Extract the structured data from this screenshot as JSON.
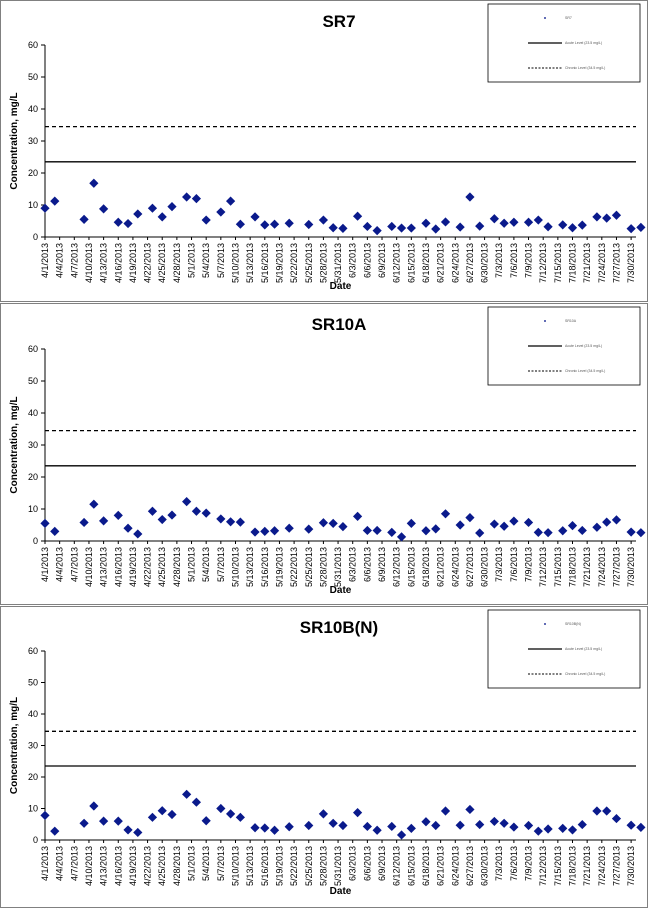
{
  "chart_data": [
    {
      "type": "scatter",
      "title": "SR7",
      "xlabel": "Date",
      "ylabel": "Concentration, mg/L",
      "ylim": [
        0,
        60
      ],
      "yticks": [
        0,
        10,
        20,
        30,
        40,
        50,
        60
      ],
      "grid": false,
      "legend_placement": "top-right",
      "x_tick_labels": [
        "4/1/2013",
        "4/4/2013",
        "4/7/2013",
        "4/10/2013",
        "4/13/2013",
        "4/16/2013",
        "4/19/2013",
        "4/22/2013",
        "4/25/2013",
        "4/28/2013",
        "5/1/2013",
        "5/4/2013",
        "5/7/2013",
        "5/10/2013",
        "5/13/2013",
        "5/16/2013",
        "5/19/2013",
        "5/22/2013",
        "5/25/2013",
        "5/28/2013",
        "5/31/2013",
        "6/3/2013",
        "6/6/2013",
        "6/9/2013",
        "6/12/2013",
        "6/15/2013",
        "6/18/2013",
        "6/21/2013",
        "6/24/2013",
        "6/27/2013",
        "6/30/2013",
        "7/3/2013",
        "7/6/2013",
        "7/9/2013",
        "7/12/2013",
        "7/15/2013",
        "7/18/2013",
        "7/21/2013",
        "7/24/2013",
        "7/27/2013",
        "7/30/2013"
      ],
      "x_start": "2013-04-01",
      "x_end": "2013-07-31",
      "series": [
        {
          "name": "SR7",
          "marker_color": "#0a1a8c",
          "points": [
            [
              "2013-04-01",
              9.0
            ],
            [
              "2013-04-03",
              11.2
            ],
            [
              "2013-04-09",
              5.5
            ],
            [
              "2013-04-11",
              16.8
            ],
            [
              "2013-04-13",
              8.8
            ],
            [
              "2013-04-16",
              4.6
            ],
            [
              "2013-04-18",
              4.2
            ],
            [
              "2013-04-20",
              7.2
            ],
            [
              "2013-04-23",
              9.0
            ],
            [
              "2013-04-25",
              6.3
            ],
            [
              "2013-04-27",
              9.5
            ],
            [
              "2013-04-30",
              12.5
            ],
            [
              "2013-05-02",
              12.0
            ],
            [
              "2013-05-04",
              5.3
            ],
            [
              "2013-05-07",
              7.8
            ],
            [
              "2013-05-09",
              11.2
            ],
            [
              "2013-05-11",
              4.0
            ],
            [
              "2013-05-14",
              6.3
            ],
            [
              "2013-05-16",
              3.8
            ],
            [
              "2013-05-18",
              4.0
            ],
            [
              "2013-05-21",
              4.3
            ],
            [
              "2013-05-25",
              3.9
            ],
            [
              "2013-05-28",
              5.3
            ],
            [
              "2013-05-30",
              2.9
            ],
            [
              "2013-06-01",
              2.7
            ],
            [
              "2013-06-04",
              6.5
            ],
            [
              "2013-06-06",
              3.3
            ],
            [
              "2013-06-08",
              2.0
            ],
            [
              "2013-06-11",
              3.3
            ],
            [
              "2013-06-13",
              2.8
            ],
            [
              "2013-06-15",
              2.8
            ],
            [
              "2013-06-18",
              4.3
            ],
            [
              "2013-06-20",
              2.5
            ],
            [
              "2013-06-22",
              4.7
            ],
            [
              "2013-06-25",
              3.1
            ],
            [
              "2013-06-27",
              12.5
            ],
            [
              "2013-06-29",
              3.4
            ],
            [
              "2013-07-02",
              5.7
            ],
            [
              "2013-07-04",
              4.3
            ],
            [
              "2013-07-06",
              4.6
            ],
            [
              "2013-07-09",
              4.6
            ],
            [
              "2013-07-11",
              5.3
            ],
            [
              "2013-07-13",
              3.2
            ],
            [
              "2013-07-16",
              3.8
            ],
            [
              "2013-07-18",
              2.9
            ],
            [
              "2013-07-20",
              3.7
            ],
            [
              "2013-07-23",
              6.3
            ],
            [
              "2013-07-25",
              5.9
            ],
            [
              "2013-07-27",
              6.8
            ],
            [
              "2013-07-30",
              2.6
            ],
            [
              "2013-08-01",
              3.0
            ]
          ]
        }
      ],
      "reference_lines": [
        {
          "style": "solid",
          "value": 23.5,
          "color": "#000000"
        },
        {
          "style": "dashed",
          "value": 34.5,
          "color": "#000000"
        }
      ],
      "legend": [
        "SR7",
        "Acute Level (23.5 mg/L)",
        "Chronic Level (34.5 mg/L)"
      ]
    },
    {
      "type": "scatter",
      "title": "SR10A",
      "xlabel": "Date",
      "ylabel": "Concentration, mg/L",
      "ylim": [
        0,
        60
      ],
      "yticks": [
        0,
        10,
        20,
        30,
        40,
        50,
        60
      ],
      "grid": false,
      "legend_placement": "top-right",
      "x_tick_labels": [
        "4/1/2013",
        "4/4/2013",
        "4/7/2013",
        "4/10/2013",
        "4/13/2013",
        "4/16/2013",
        "4/19/2013",
        "4/22/2013",
        "4/25/2013",
        "4/28/2013",
        "5/1/2013",
        "5/4/2013",
        "5/7/2013",
        "5/10/2013",
        "5/13/2013",
        "5/16/2013",
        "5/19/2013",
        "5/22/2013",
        "5/25/2013",
        "5/28/2013",
        "5/31/2013",
        "6/3/2013",
        "6/6/2013",
        "6/9/2013",
        "6/12/2013",
        "6/15/2013",
        "6/18/2013",
        "6/21/2013",
        "6/24/2013",
        "6/27/2013",
        "6/30/2013",
        "7/3/2013",
        "7/6/2013",
        "7/9/2013",
        "7/12/2013",
        "7/15/2013",
        "7/18/2013",
        "7/21/2013",
        "7/24/2013",
        "7/27/2013",
        "7/30/2013"
      ],
      "x_start": "2013-04-01",
      "x_end": "2013-07-31",
      "series": [
        {
          "name": "SR10A",
          "marker_color": "#0a1a8c",
          "points": [
            [
              "2013-04-01",
              5.5
            ],
            [
              "2013-04-03",
              3.0
            ],
            [
              "2013-04-09",
              5.8
            ],
            [
              "2013-04-11",
              11.5
            ],
            [
              "2013-04-13",
              6.3
            ],
            [
              "2013-04-16",
              8.0
            ],
            [
              "2013-04-18",
              4.0
            ],
            [
              "2013-04-20",
              2.2
            ],
            [
              "2013-04-23",
              9.3
            ],
            [
              "2013-04-25",
              6.7
            ],
            [
              "2013-04-27",
              8.1
            ],
            [
              "2013-04-30",
              12.3
            ],
            [
              "2013-05-02",
              9.3
            ],
            [
              "2013-05-04",
              8.7
            ],
            [
              "2013-05-07",
              6.9
            ],
            [
              "2013-05-09",
              6.0
            ],
            [
              "2013-05-11",
              5.9
            ],
            [
              "2013-05-14",
              2.8
            ],
            [
              "2013-05-16",
              3.0
            ],
            [
              "2013-05-18",
              3.2
            ],
            [
              "2013-05-21",
              4.0
            ],
            [
              "2013-05-25",
              3.7
            ],
            [
              "2013-05-28",
              5.7
            ],
            [
              "2013-05-30",
              5.5
            ],
            [
              "2013-06-01",
              4.5
            ],
            [
              "2013-06-04",
              7.7
            ],
            [
              "2013-06-06",
              3.3
            ],
            [
              "2013-06-08",
              3.3
            ],
            [
              "2013-06-11",
              2.7
            ],
            [
              "2013-06-13",
              1.3
            ],
            [
              "2013-06-15",
              5.5
            ],
            [
              "2013-06-18",
              3.2
            ],
            [
              "2013-06-20",
              3.8
            ],
            [
              "2013-06-22",
              8.5
            ],
            [
              "2013-06-25",
              5.0
            ],
            [
              "2013-06-27",
              7.3
            ],
            [
              "2013-06-29",
              2.5
            ],
            [
              "2013-07-02",
              5.3
            ],
            [
              "2013-07-04",
              4.6
            ],
            [
              "2013-07-06",
              6.2
            ],
            [
              "2013-07-09",
              5.8
            ],
            [
              "2013-07-11",
              2.7
            ],
            [
              "2013-07-13",
              2.6
            ],
            [
              "2013-07-16",
              3.2
            ],
            [
              "2013-07-18",
              4.8
            ],
            [
              "2013-07-20",
              3.3
            ],
            [
              "2013-07-23",
              4.3
            ],
            [
              "2013-07-25",
              5.9
            ],
            [
              "2013-07-27",
              6.6
            ],
            [
              "2013-07-30",
              2.8
            ],
            [
              "2013-08-01",
              2.6
            ]
          ]
        }
      ],
      "reference_lines": [
        {
          "style": "solid",
          "value": 23.5,
          "color": "#000000"
        },
        {
          "style": "dashed",
          "value": 34.5,
          "color": "#000000"
        }
      ],
      "legend": [
        "SR10A",
        "Acute Level (23.5 mg/L)",
        "Chronic Level (34.5 mg/L)"
      ]
    },
    {
      "type": "scatter",
      "title": "SR10B(N)",
      "xlabel": "Date",
      "ylabel": "Concentration, mg/L",
      "ylim": [
        0,
        60
      ],
      "yticks": [
        0,
        10,
        20,
        30,
        40,
        50,
        60
      ],
      "grid": false,
      "legend_placement": "top-right",
      "x_tick_labels": [
        "4/1/2013",
        "4/4/2013",
        "4/7/2013",
        "4/10/2013",
        "4/13/2013",
        "4/16/2013",
        "4/19/2013",
        "4/22/2013",
        "4/25/2013",
        "4/28/2013",
        "5/1/2013",
        "5/4/2013",
        "5/7/2013",
        "5/10/2013",
        "5/13/2013",
        "5/16/2013",
        "5/19/2013",
        "5/22/2013",
        "5/25/2013",
        "5/28/2013",
        "5/31/2013",
        "6/3/2013",
        "6/6/2013",
        "6/9/2013",
        "6/12/2013",
        "6/15/2013",
        "6/18/2013",
        "6/21/2013",
        "6/24/2013",
        "6/27/2013",
        "6/30/2013",
        "7/3/2013",
        "7/6/2013",
        "7/9/2013",
        "7/12/2013",
        "7/15/2013",
        "7/18/2013",
        "7/21/2013",
        "7/24/2013",
        "7/27/2013",
        "7/30/2013"
      ],
      "x_start": "2013-04-01",
      "x_end": "2013-07-31",
      "series": [
        {
          "name": "SR10B(N)",
          "marker_color": "#0a1a8c",
          "points": [
            [
              "2013-04-01",
              7.8
            ],
            [
              "2013-04-03",
              2.8
            ],
            [
              "2013-04-09",
              5.3
            ],
            [
              "2013-04-11",
              10.8
            ],
            [
              "2013-04-13",
              6.0
            ],
            [
              "2013-04-16",
              6.0
            ],
            [
              "2013-04-18",
              3.2
            ],
            [
              "2013-04-20",
              2.4
            ],
            [
              "2013-04-23",
              7.2
            ],
            [
              "2013-04-25",
              9.3
            ],
            [
              "2013-04-27",
              8.1
            ],
            [
              "2013-04-30",
              14.5
            ],
            [
              "2013-05-02",
              12.0
            ],
            [
              "2013-05-04",
              6.1
            ],
            [
              "2013-05-07",
              10.0
            ],
            [
              "2013-05-09",
              8.3
            ],
            [
              "2013-05-11",
              7.2
            ],
            [
              "2013-05-14",
              3.9
            ],
            [
              "2013-05-16",
              3.8
            ],
            [
              "2013-05-18",
              3.1
            ],
            [
              "2013-05-21",
              4.2
            ],
            [
              "2013-05-25",
              4.6
            ],
            [
              "2013-05-28",
              8.3
            ],
            [
              "2013-05-30",
              5.3
            ],
            [
              "2013-06-01",
              4.6
            ],
            [
              "2013-06-04",
              8.7
            ],
            [
              "2013-06-06",
              4.3
            ],
            [
              "2013-06-08",
              3.1
            ],
            [
              "2013-06-11",
              4.3
            ],
            [
              "2013-06-13",
              1.6
            ],
            [
              "2013-06-15",
              3.7
            ],
            [
              "2013-06-18",
              5.8
            ],
            [
              "2013-06-20",
              4.6
            ],
            [
              "2013-06-22",
              9.2
            ],
            [
              "2013-06-25",
              4.7
            ],
            [
              "2013-06-27",
              9.7
            ],
            [
              "2013-06-29",
              4.9
            ],
            [
              "2013-07-02",
              5.9
            ],
            [
              "2013-07-04",
              5.3
            ],
            [
              "2013-07-06",
              4.1
            ],
            [
              "2013-07-09",
              4.6
            ],
            [
              "2013-07-11",
              2.8
            ],
            [
              "2013-07-13",
              3.5
            ],
            [
              "2013-07-16",
              3.7
            ],
            [
              "2013-07-18",
              3.2
            ],
            [
              "2013-07-20",
              4.9
            ],
            [
              "2013-07-23",
              9.2
            ],
            [
              "2013-07-25",
              9.2
            ],
            [
              "2013-07-27",
              6.8
            ],
            [
              "2013-07-30",
              4.7
            ],
            [
              "2013-08-01",
              4.0
            ]
          ]
        }
      ],
      "reference_lines": [
        {
          "style": "solid",
          "value": 23.5,
          "color": "#000000"
        },
        {
          "style": "dashed",
          "value": 34.5,
          "color": "#000000"
        }
      ],
      "legend": [
        "SR10B(N)",
        "Acute Level (23.5 mg/L)",
        "Chronic Level (34.5 mg/L)"
      ]
    }
  ]
}
